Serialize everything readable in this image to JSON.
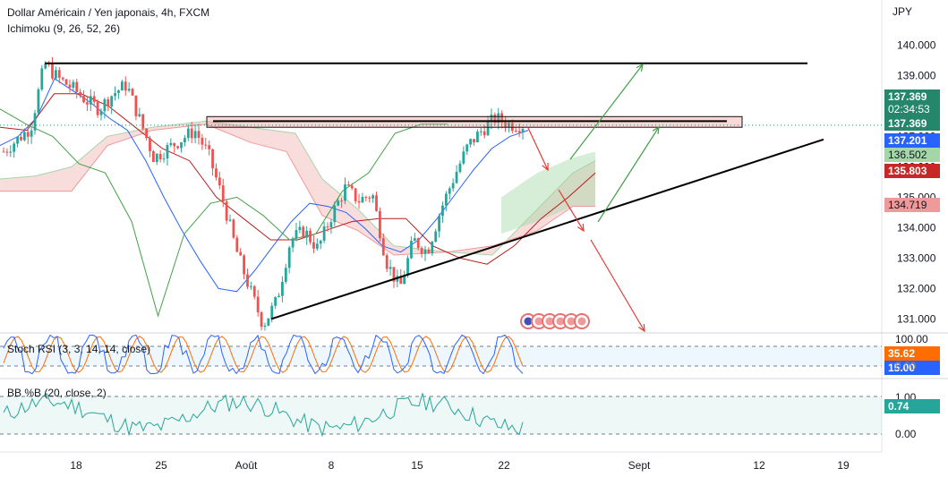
{
  "header": {
    "title": "Dollar Américain / Yen japonais, 4h, FXCM",
    "indicator": "Ichimoku (9, 26, 52, 26)"
  },
  "price_axis": {
    "unit": "JPY",
    "ticks": [
      "140.000",
      "139.000",
      "138.000",
      "137.000",
      "136.000",
      "135.000",
      "134.000",
      "133.000",
      "132.000",
      "131.000"
    ],
    "tags": [
      {
        "text": "137.369",
        "bg": "#26866b",
        "y": 137.369
      },
      {
        "text": "137.369",
        "bg": "#26866b",
        "y": 137.369
      },
      {
        "text": "137.201",
        "bg": "#2962ff",
        "y": 137.201
      },
      {
        "text": "136.502",
        "bg": "#a5d6a7",
        "y": 136.502
      },
      {
        "text": "135.803",
        "bg": "#c62828",
        "y": 135.803
      },
      {
        "text": "134.719",
        "bg": "#ef9a9a",
        "y": 134.719
      }
    ],
    "countdown": "02:34:53"
  },
  "stoch": {
    "label": "Stoch RSI (3, 3, 14, 14, close)",
    "ticks": [
      "100.00",
      "0.00"
    ],
    "tags": [
      {
        "text": "35.62",
        "bg": "#ff6d00"
      },
      {
        "text": "15.00",
        "bg": "#2962ff"
      }
    ]
  },
  "bb": {
    "label": "BB %B (20, close, 2)",
    "ticks": [
      "1.00",
      "0.00"
    ],
    "tag": {
      "text": "0.74",
      "bg": "#26a69a"
    }
  },
  "time_axis": {
    "labels": [
      "18",
      "25",
      "Août",
      "8",
      "15",
      "22",
      "Sept",
      "12",
      "19"
    ]
  },
  "chart_data": {
    "type": "candlestick",
    "title": "Dollar Américain / Yen japonais, 4h, FXCM",
    "ylabel": "JPY",
    "ylim": [
      130.6,
      140.6
    ],
    "x_labels": [
      "18",
      "25",
      "Août",
      "8",
      "15",
      "22",
      "Sept",
      "12",
      "19"
    ],
    "price_path": [
      136.5,
      136.9,
      137.3,
      139.4,
      138.9,
      138.6,
      138.2,
      137.9,
      138.4,
      138.7,
      137.5,
      136.3,
      136.6,
      136.9,
      137.2,
      136.4,
      135.0,
      133.3,
      132.0,
      130.8,
      131.6,
      133.6,
      133.9,
      133.3,
      134.4,
      135.3,
      134.9,
      135.1,
      132.9,
      132.0,
      133.6,
      133.2,
      134.6,
      135.7,
      136.7,
      137.2,
      137.6,
      137.4,
      137.37
    ],
    "series": [
      {
        "name": "Tenkan-sen",
        "values": [
          136.7,
          137.0,
          137.6,
          138.9,
          138.5,
          138.1,
          137.6,
          137.2,
          136.2,
          135.0,
          133.9,
          132.9,
          132.0,
          131.9,
          132.6,
          133.4,
          134.2,
          134.8,
          134.7,
          134.5,
          134.0,
          133.4,
          133.2,
          133.6,
          134.3,
          135.1,
          135.9,
          136.6,
          137.0,
          137.2
        ]
      },
      {
        "name": "Kijun-sen",
        "values": [
          137.3,
          137.2,
          138.4,
          138.4,
          138.0,
          137.3,
          136.6,
          136.2,
          135.0,
          134.3,
          133.6,
          133.6,
          133.9,
          134.2,
          134.3,
          134.3,
          133.4,
          133.0,
          132.8,
          133.4,
          134.3,
          135.0,
          135.8
        ]
      },
      {
        "name": "Chikou span",
        "values": [
          137.9,
          137.4,
          137.0,
          136.1,
          135.8,
          134.2,
          131.1,
          133.8,
          134.8,
          135.0,
          134.4,
          133.6,
          133.8,
          135.2,
          135.8,
          137.1,
          137.4,
          137.4
        ]
      }
    ],
    "annotations": {
      "resistance": 139.4,
      "zone": [
        137.3,
        137.65
      ],
      "support_line": [
        [
          131.0,
          136.9
        ]
      ]
    },
    "indicators": [
      {
        "name": "Stoch RSI (3, 3, 14, 14, close)",
        "k": 35.62,
        "d": 15.0,
        "levels": [
          80,
          20
        ]
      },
      {
        "name": "BB %B (20, close, 2)",
        "value": 0.74,
        "levels": [
          1.0,
          0.0
        ]
      }
    ]
  }
}
